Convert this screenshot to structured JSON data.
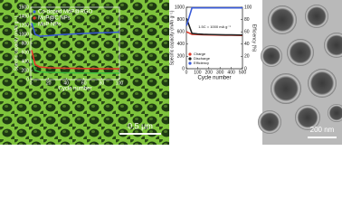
{
  "chart_data": [
    {
      "type": "line",
      "ylabel": "Specific capacity (mAh g⁻¹)",
      "xlabel": "Cycle number",
      "x": [
        1,
        5,
        10,
        20,
        30,
        40,
        50,
        60,
        70,
        80,
        90,
        100
      ],
      "series": [
        {
          "name": "Co-doped MoP@RGO",
          "color": "#3a5bd9",
          "values": [
            1250,
            1000,
            960,
            970,
            990,
            1000,
            1010,
            1020,
            1030,
            1035,
            1040,
            1050
          ]
        },
        {
          "name": "MoP@C NPs",
          "color": "#e03a2a",
          "values": [
            650,
            330,
            280,
            260,
            255,
            250,
            248,
            245,
            243,
            240,
            240,
            238
          ]
        },
        {
          "name": "MoP NPs",
          "color": "#3fbf3f",
          "values": [
            450,
            200,
            170,
            160,
            155,
            150,
            148,
            146,
            145,
            144,
            143,
            142
          ]
        }
      ],
      "xlim": [
        0,
        100
      ],
      "xticks": [
        0,
        20,
        40,
        60,
        80,
        100
      ],
      "ylim": [
        0,
        1600
      ],
      "yticks": [
        0,
        200,
        400,
        600,
        800,
        1000,
        1200,
        1400,
        1600
      ],
      "legend": "upper left"
    },
    {
      "type": "line",
      "ylabel": "Specific capacity (mAh g⁻¹)",
      "y2label": "Efficiency (%)",
      "xlabel": "Cycle number",
      "annotation": "1.5C = 1000 mA g⁻¹",
      "x": [
        1,
        50,
        100,
        150,
        200,
        250,
        300,
        350,
        400,
        450,
        500
      ],
      "series": [
        {
          "name": "Charge",
          "color": "#e03a2a",
          "values": [
            600,
            560,
            555,
            552,
            550,
            548,
            546,
            545,
            544,
            543,
            542
          ]
        },
        {
          "name": "Discharge",
          "color": "#222222",
          "values": [
            820,
            575,
            565,
            560,
            557,
            555,
            553,
            551,
            550,
            549,
            548
          ]
        },
        {
          "name": "Efficiency",
          "color": "#3a5bd9",
          "axis": "y2",
          "values": [
            70,
            99,
            99,
            99,
            99,
            99,
            99,
            99,
            99,
            99,
            99
          ]
        }
      ],
      "xlim": [
        0,
        500
      ],
      "xticks": [
        0,
        100,
        200,
        300,
        400,
        500
      ],
      "ylim": [
        0,
        1000
      ],
      "yticks": [
        0,
        200,
        400,
        600,
        800,
        1000
      ],
      "y2lim": [
        0,
        100
      ],
      "y2ticks": [
        0,
        20,
        40,
        60,
        80,
        100
      ],
      "legend": "lower left"
    }
  ],
  "scale_bars": [
    "0.5 µm",
    "200 nm"
  ]
}
